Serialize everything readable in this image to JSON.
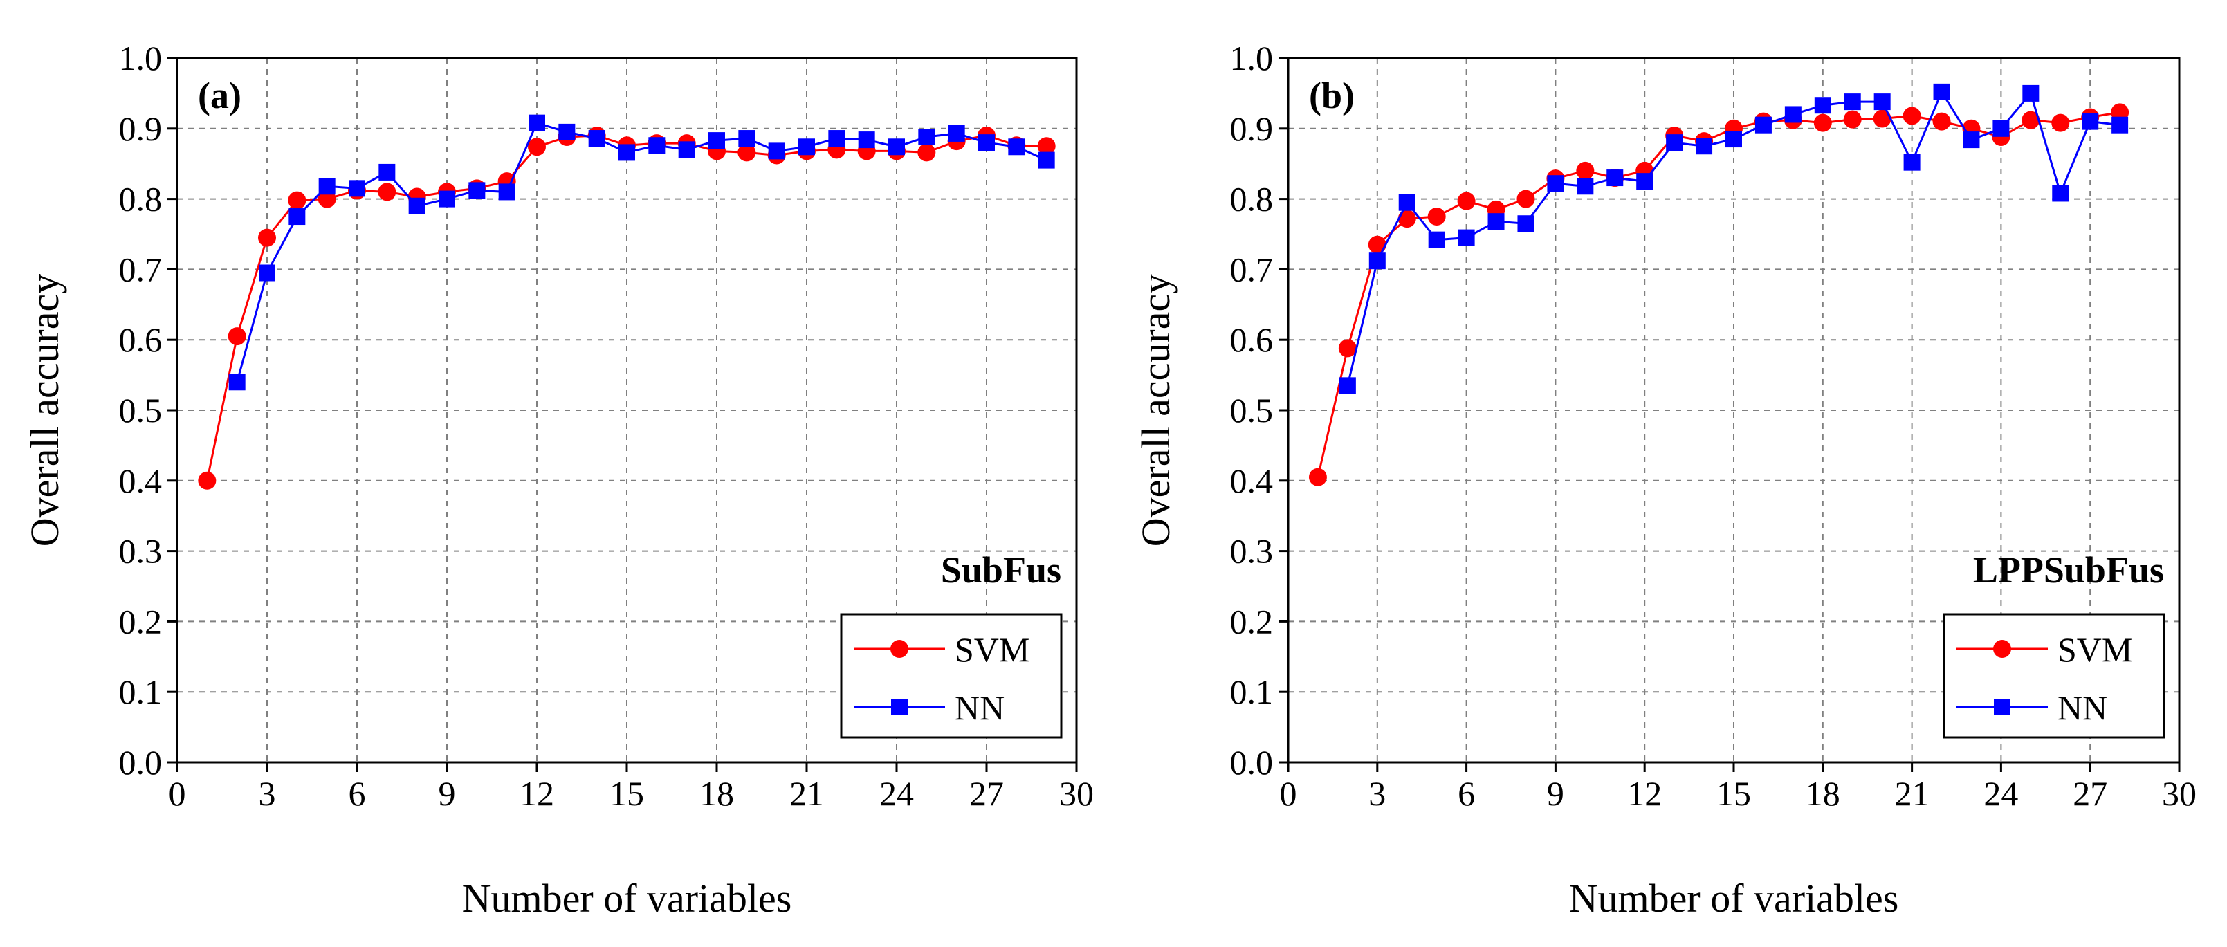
{
  "colors": {
    "svm": "#ff0000",
    "nn": "#0000ff",
    "grid": "#808080",
    "axis": "#000000"
  },
  "chart_data": [
    {
      "type": "line",
      "panel_label": "(a)",
      "title": "SubFus",
      "xlabel": "Number of variables",
      "ylabel": "Overall accuracy",
      "xlim": [
        0,
        30
      ],
      "ylim": [
        0.0,
        1.0
      ],
      "xticks": [
        "0",
        "3",
        "6",
        "9",
        "12",
        "15",
        "18",
        "21",
        "24",
        "27",
        "30"
      ],
      "yticks": [
        "0.0",
        "0.1",
        "0.2",
        "0.3",
        "0.4",
        "0.5",
        "0.6",
        "0.7",
        "0.8",
        "0.9",
        "1.0"
      ],
      "grid": true,
      "legend_position": "bottom-right",
      "series": [
        {
          "name": "SVM",
          "marker": "circle",
          "x": [
            1,
            2,
            3,
            4,
            5,
            6,
            7,
            8,
            9,
            10,
            11,
            12,
            13,
            14,
            15,
            16,
            17,
            18,
            19,
            20,
            21,
            22,
            23,
            24,
            25,
            26,
            27,
            28,
            29
          ],
          "values": [
            0.4,
            0.605,
            0.745,
            0.798,
            0.8,
            0.812,
            0.81,
            0.803,
            0.81,
            0.815,
            0.825,
            0.874,
            0.888,
            0.89,
            0.876,
            0.879,
            0.879,
            0.868,
            0.866,
            0.862,
            0.868,
            0.87,
            0.868,
            0.868,
            0.866,
            0.882,
            0.89,
            0.876,
            0.875
          ]
        },
        {
          "name": "NN",
          "marker": "square",
          "x": [
            2,
            3,
            4,
            5,
            6,
            7,
            8,
            9,
            10,
            11,
            12,
            13,
            14,
            15,
            16,
            17,
            18,
            19,
            20,
            21,
            22,
            23,
            24,
            25,
            26,
            27,
            28,
            29
          ],
          "values": [
            0.54,
            0.695,
            0.775,
            0.818,
            0.815,
            0.838,
            0.79,
            0.8,
            0.812,
            0.81,
            0.908,
            0.895,
            0.886,
            0.866,
            0.876,
            0.87,
            0.883,
            0.886,
            0.868,
            0.874,
            0.886,
            0.884,
            0.874,
            0.888,
            0.893,
            0.88,
            0.874,
            0.855
          ]
        }
      ]
    },
    {
      "type": "line",
      "panel_label": "(b)",
      "title": "LPPSubFus",
      "xlabel": "Number of variables",
      "ylabel": "Overall accuracy",
      "xlim": [
        0,
        30
      ],
      "ylim": [
        0.0,
        1.0
      ],
      "xticks": [
        "0",
        "3",
        "6",
        "9",
        "12",
        "15",
        "18",
        "21",
        "24",
        "27",
        "30"
      ],
      "yticks": [
        "0.0",
        "0.1",
        "0.2",
        "0.3",
        "0.4",
        "0.5",
        "0.6",
        "0.7",
        "0.8",
        "0.9",
        "1.0"
      ],
      "grid": true,
      "legend_position": "bottom-right",
      "series": [
        {
          "name": "SVM",
          "marker": "circle",
          "x": [
            1,
            2,
            3,
            4,
            5,
            6,
            7,
            8,
            9,
            10,
            11,
            12,
            13,
            14,
            15,
            16,
            17,
            18,
            19,
            20,
            21,
            22,
            23,
            24,
            25,
            26,
            27,
            28
          ],
          "values": [
            0.405,
            0.588,
            0.735,
            0.772,
            0.775,
            0.797,
            0.785,
            0.8,
            0.829,
            0.84,
            0.83,
            0.84,
            0.89,
            0.882,
            0.9,
            0.91,
            0.912,
            0.908,
            0.913,
            0.914,
            0.918,
            0.91,
            0.9,
            0.888,
            0.912,
            0.908,
            0.916,
            0.923
          ]
        },
        {
          "name": "NN",
          "marker": "square",
          "x": [
            2,
            3,
            4,
            5,
            6,
            7,
            8,
            9,
            10,
            11,
            12,
            13,
            14,
            15,
            16,
            17,
            18,
            19,
            20,
            21,
            22,
            23,
            24,
            25,
            26,
            27,
            28
          ],
          "values": [
            0.535,
            0.712,
            0.795,
            0.742,
            0.745,
            0.768,
            0.765,
            0.822,
            0.818,
            0.83,
            0.825,
            0.88,
            0.875,
            0.885,
            0.905,
            0.92,
            0.933,
            0.938,
            0.938,
            0.852,
            0.952,
            0.884,
            0.9,
            0.95,
            0.808,
            0.91,
            0.905
          ]
        }
      ]
    }
  ]
}
